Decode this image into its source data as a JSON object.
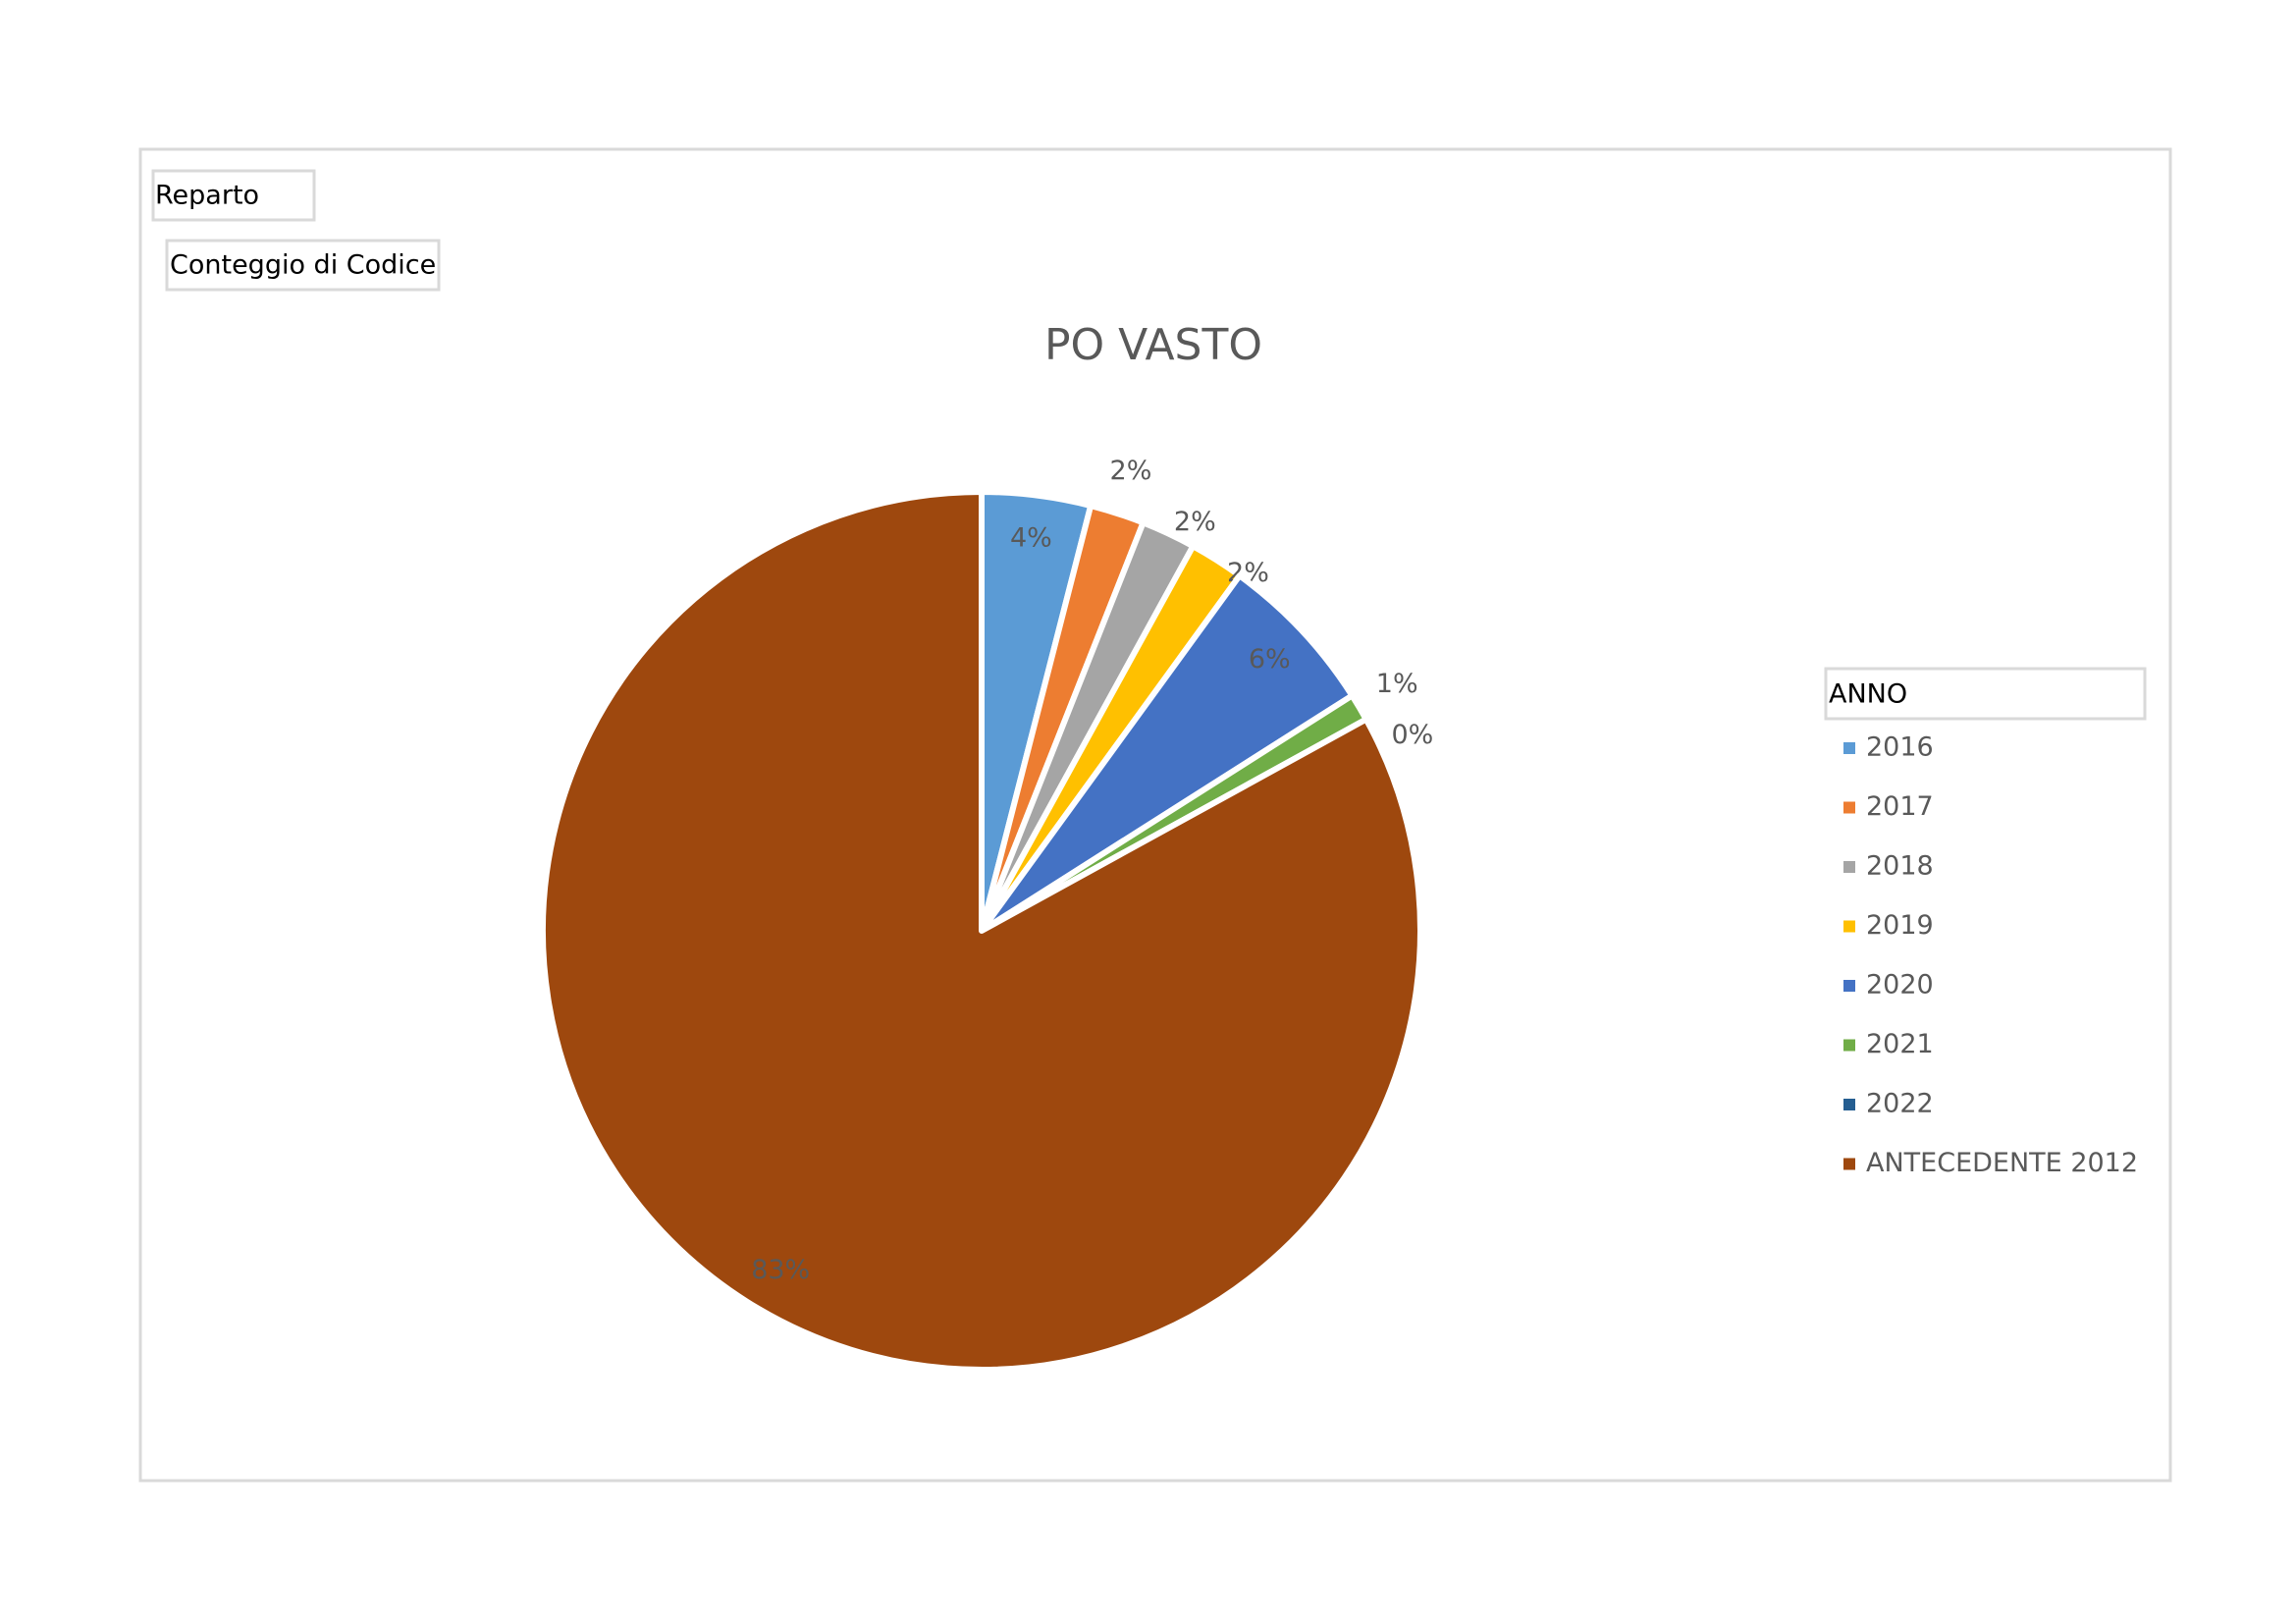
{
  "chart_data": {
    "type": "pie",
    "title": "PO VASTO",
    "field_buttons": [
      "Reparto",
      "Conteggio di Codice"
    ],
    "legend_title": "ANNO",
    "legend": "right",
    "categories": [
      "2016",
      "2017",
      "2018",
      "2019",
      "2020",
      "2021",
      "2022",
      "ANTECEDENTE 2012"
    ],
    "values": [
      4,
      2,
      2,
      2,
      6,
      1,
      0,
      83
    ],
    "value_labels": [
      "4%",
      "2%",
      "2%",
      "2%",
      "6%",
      "1%",
      "0%",
      "83%"
    ],
    "colors": [
      "#5b9bd5",
      "#ed7d31",
      "#a5a5a5",
      "#ffc000",
      "#4472c4",
      "#70ad47",
      "#255e91",
      "#9e480e"
    ]
  }
}
